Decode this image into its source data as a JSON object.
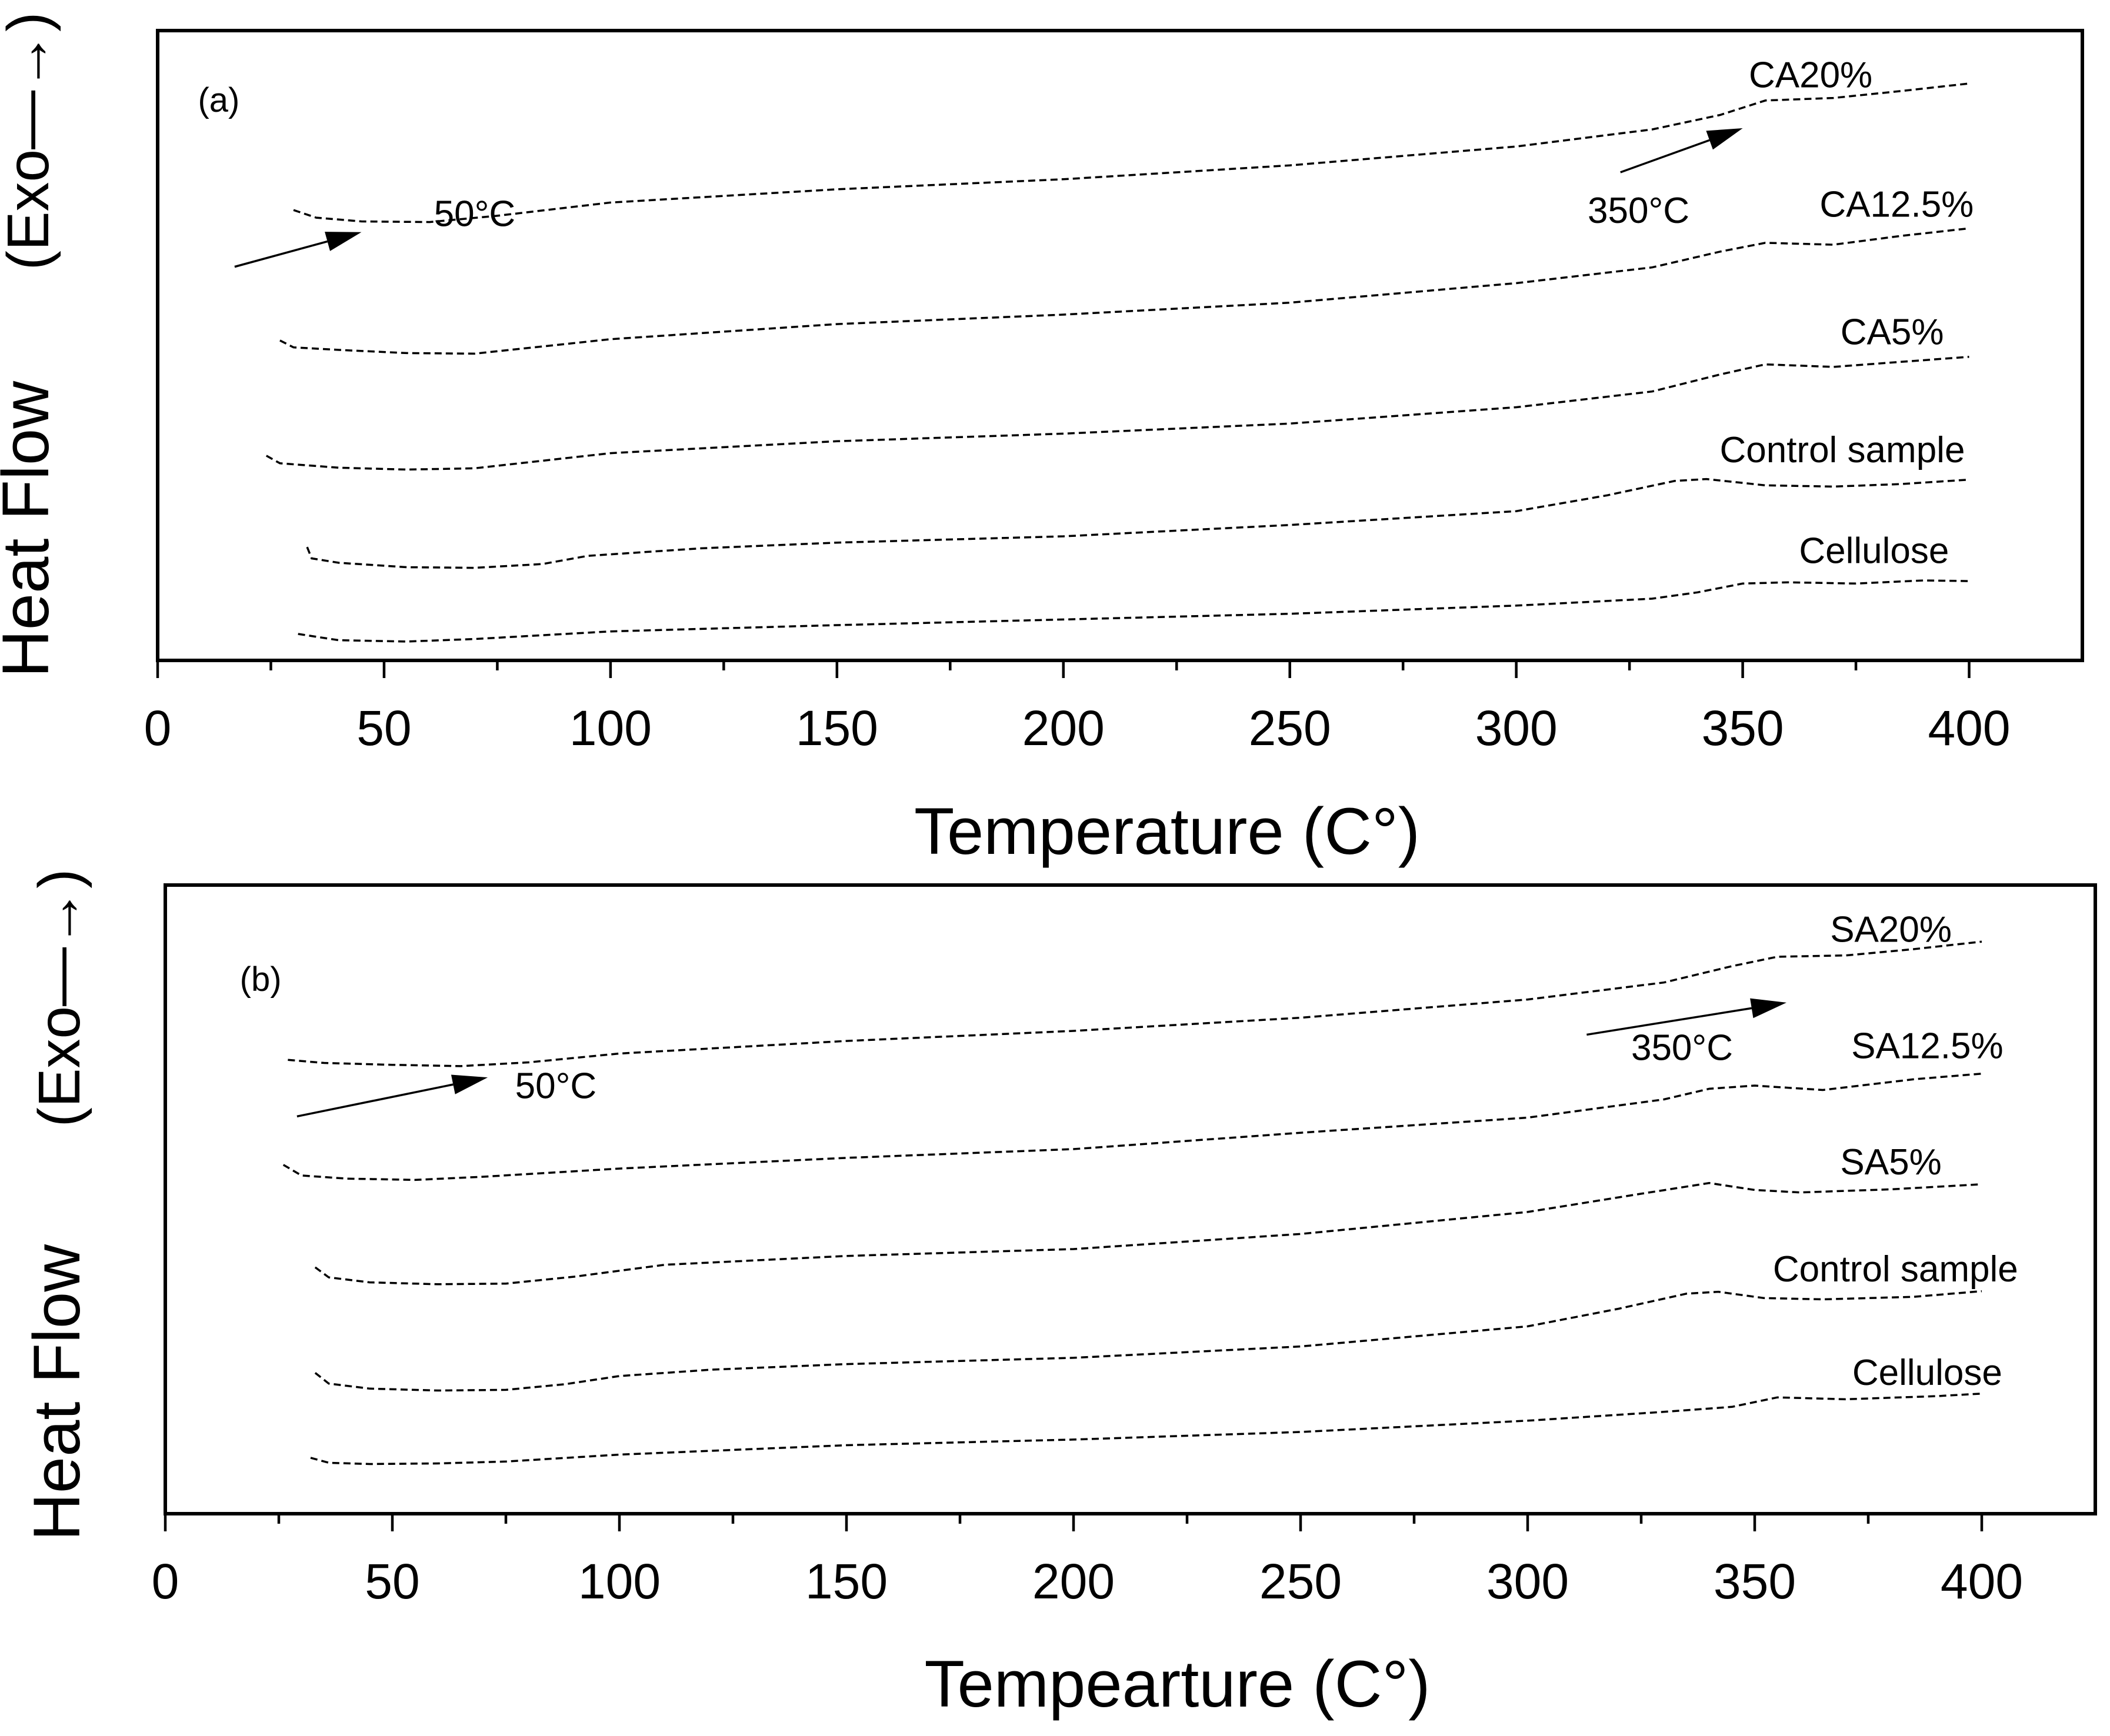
{
  "chart_data": [
    {
      "id": "a",
      "type": "line",
      "panel_label": "(a)",
      "xlabel": "Temperature (C°)",
      "ylabel": "Heat Flow",
      "ylabel_exo": "(Exo—→)",
      "xlim": [
        0,
        425
      ],
      "ylim": [
        0,
        1
      ],
      "xticks": [
        0,
        50,
        100,
        150,
        200,
        250,
        300,
        350,
        400
      ],
      "annotations": [
        {
          "text": "50°C",
          "at": [
            70,
            0.705
          ],
          "arrow_from": [
            17,
            0.625
          ],
          "arrow_to": [
            45,
            0.68
          ]
        },
        {
          "text": "350°C",
          "at": [
            327,
            0.71
          ],
          "arrow_from": [
            323,
            0.775
          ],
          "arrow_to": [
            350,
            0.845
          ]
        }
      ],
      "series": [
        {
          "name": "CA20%",
          "label_at": [
            365,
            0.925
          ],
          "x": [
            30,
            35,
            45,
            60,
            75,
            100,
            150,
            200,
            250,
            300,
            330,
            345,
            355,
            370,
            385,
            400
          ],
          "y": [
            0.715,
            0.703,
            0.697,
            0.696,
            0.706,
            0.727,
            0.748,
            0.764,
            0.786,
            0.816,
            0.843,
            0.866,
            0.889,
            0.893,
            0.904,
            0.916
          ]
        },
        {
          "name": "CA12.5%",
          "label_at": [
            384,
            0.72
          ],
          "x": [
            27,
            30,
            40,
            55,
            70,
            100,
            150,
            200,
            250,
            300,
            330,
            345,
            355,
            370,
            385,
            400
          ],
          "y": [
            0.508,
            0.497,
            0.493,
            0.488,
            0.487,
            0.51,
            0.534,
            0.549,
            0.568,
            0.599,
            0.624,
            0.649,
            0.663,
            0.66,
            0.674,
            0.686
          ]
        },
        {
          "name": "CA5%",
          "label_at": [
            383,
            0.517
          ],
          "x": [
            24,
            27,
            40,
            55,
            70,
            100,
            150,
            200,
            250,
            300,
            330,
            345,
            355,
            370,
            385,
            400
          ],
          "y": [
            0.325,
            0.313,
            0.306,
            0.303,
            0.305,
            0.329,
            0.348,
            0.36,
            0.376,
            0.402,
            0.427,
            0.454,
            0.47,
            0.466,
            0.474,
            0.482
          ]
        },
        {
          "name": "Control sample",
          "label_at": [
            372,
            0.33
          ],
          "x": [
            33,
            34,
            40,
            55,
            70,
            85,
            95,
            120,
            150,
            200,
            250,
            300,
            320,
            335,
            342,
            355,
            370,
            385,
            400
          ],
          "y": [
            0.18,
            0.162,
            0.155,
            0.148,
            0.147,
            0.153,
            0.166,
            0.178,
            0.187,
            0.197,
            0.215,
            0.237,
            0.262,
            0.285,
            0.288,
            0.278,
            0.276,
            0.28,
            0.287
          ]
        },
        {
          "name": "Cellulose",
          "label_at": [
            379,
            0.17
          ],
          "x": [
            31,
            40,
            55,
            70,
            100,
            150,
            200,
            250,
            300,
            330,
            340,
            350,
            360,
            375,
            390,
            400
          ],
          "y": [
            0.042,
            0.032,
            0.03,
            0.034,
            0.046,
            0.056,
            0.065,
            0.074,
            0.087,
            0.098,
            0.108,
            0.122,
            0.124,
            0.122,
            0.127,
            0.126
          ]
        }
      ]
    },
    {
      "id": "b",
      "type": "line",
      "panel_label": "(b)",
      "xlabel": "Tempearture (C°)",
      "ylabel": "Heat Flow",
      "ylabel_exo": "(Exo—→)",
      "xlim": [
        0,
        425
      ],
      "ylim": [
        0,
        1
      ],
      "xticks": [
        0,
        50,
        100,
        150,
        200,
        250,
        300,
        350,
        400
      ],
      "annotations": [
        {
          "text": "50°C",
          "at": [
            86,
            0.676
          ],
          "arrow_from": [
            29,
            0.632
          ],
          "arrow_to": [
            71,
            0.694
          ]
        },
        {
          "text": "350°C",
          "at": [
            334,
            0.737
          ],
          "arrow_from": [
            313,
            0.762
          ],
          "arrow_to": [
            357,
            0.813
          ]
        }
      ],
      "series": [
        {
          "name": "SA20%",
          "label_at": [
            380,
            0.925
          ],
          "x": [
            27,
            35,
            50,
            65,
            80,
            100,
            150,
            200,
            250,
            300,
            330,
            345,
            355,
            370,
            385,
            400
          ],
          "y": [
            0.722,
            0.717,
            0.714,
            0.712,
            0.718,
            0.732,
            0.752,
            0.768,
            0.789,
            0.818,
            0.845,
            0.871,
            0.886,
            0.888,
            0.898,
            0.91
          ]
        },
        {
          "name": "SA12.5%",
          "label_at": [
            388,
            0.74
          ],
          "x": [
            26,
            30,
            40,
            55,
            70,
            100,
            150,
            200,
            250,
            300,
            330,
            340,
            350,
            365,
            385,
            400
          ],
          "y": [
            0.555,
            0.538,
            0.533,
            0.531,
            0.536,
            0.549,
            0.566,
            0.58,
            0.606,
            0.63,
            0.659,
            0.676,
            0.681,
            0.674,
            0.691,
            0.7
          ]
        },
        {
          "name": "SA5%",
          "label_at": [
            380,
            0.555
          ],
          "x": [
            33,
            36,
            45,
            60,
            75,
            90,
            110,
            150,
            200,
            250,
            300,
            325,
            340,
            350,
            360,
            380,
            400
          ],
          "y": [
            0.392,
            0.376,
            0.368,
            0.365,
            0.366,
            0.377,
            0.396,
            0.41,
            0.421,
            0.445,
            0.48,
            0.509,
            0.526,
            0.515,
            0.511,
            0.516,
            0.524
          ]
        },
        {
          "name": "Control sample",
          "label_at": [
            381,
            0.385
          ],
          "x": [
            33,
            36,
            45,
            60,
            75,
            88,
            100,
            120,
            150,
            200,
            250,
            300,
            320,
            335,
            342,
            352,
            365,
            385,
            400
          ],
          "y": [
            0.224,
            0.207,
            0.199,
            0.196,
            0.197,
            0.206,
            0.219,
            0.229,
            0.238,
            0.248,
            0.266,
            0.298,
            0.326,
            0.35,
            0.353,
            0.343,
            0.341,
            0.345,
            0.354
          ]
        },
        {
          "name": "Cellulose",
          "label_at": [
            388,
            0.22
          ],
          "x": [
            32,
            36,
            45,
            60,
            75,
            100,
            150,
            200,
            250,
            300,
            330,
            345,
            355,
            370,
            390,
            400
          ],
          "y": [
            0.089,
            0.081,
            0.079,
            0.08,
            0.083,
            0.094,
            0.109,
            0.118,
            0.13,
            0.148,
            0.162,
            0.17,
            0.185,
            0.182,
            0.187,
            0.191
          ]
        }
      ]
    }
  ]
}
